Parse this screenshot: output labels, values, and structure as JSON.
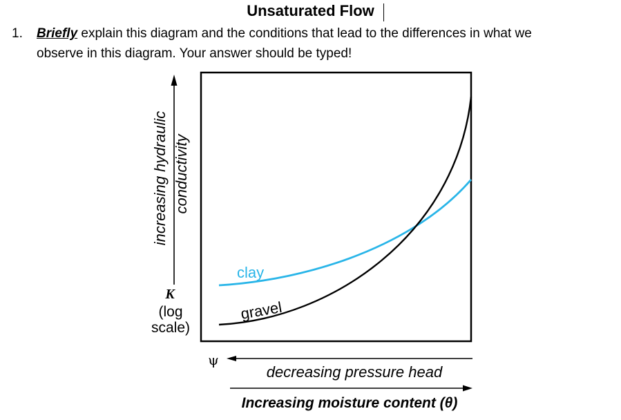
{
  "title": "Unsaturated Flow",
  "question": {
    "number": "1.",
    "emphasis": "Briefly",
    "line1_rest": " explain this diagram and the conditions that lead to the differences in what we",
    "line2": "observe in this diagram.  Your answer should be typed!"
  },
  "diagram": {
    "y_axis_label_line1": "increasing hydraulic",
    "y_axis_label_line2": "conductivity",
    "k_symbol": "K",
    "k_log": "(log",
    "k_scale": "scale)",
    "psi_symbol": "ψ",
    "x_axis_label": "decreasing pressure head",
    "x_axis_label2": "Increasing moisture content (θ)",
    "series": [
      {
        "name": "clay",
        "color": "#29b5e8"
      },
      {
        "name": "gravel",
        "color": "#000000"
      }
    ]
  }
}
